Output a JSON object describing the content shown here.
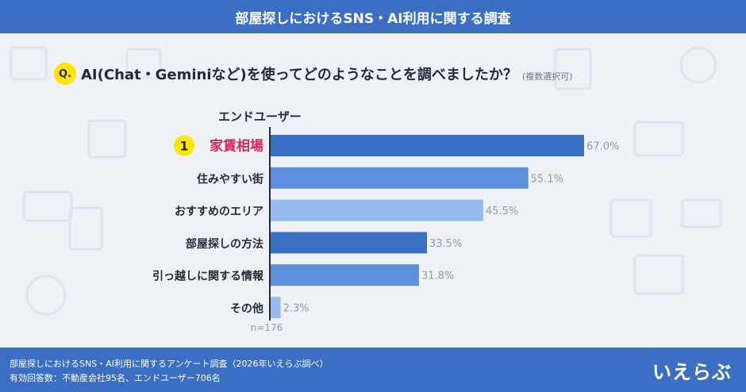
{
  "header": {
    "title": "部屋探しにおけるSNS・AI利用に関する調査"
  },
  "question": {
    "badge": "Q.",
    "text": "AI(Chat・Geminiなど)を使ってどのようなことを調べましたか？",
    "note": "(複数選択可)"
  },
  "segment_label": "エンドユーザー",
  "rank_badge": "1",
  "chart_data": {
    "type": "bar",
    "orientation": "horizontal",
    "categories": [
      "家賃相場",
      "住みやすい街",
      "おすすめのエリア",
      "部屋探しの方法",
      "引っ越しに関する情報",
      "その他"
    ],
    "values": [
      67.0,
      55.1,
      45.5,
      33.5,
      31.8,
      2.3
    ],
    "value_labels": [
      "67.0%",
      "55.1%",
      "45.5%",
      "33.5%",
      "31.8%",
      "2.3%"
    ],
    "highlight_index": 0,
    "sample": "n=176",
    "colors": {
      "bars": [
        "#3a6fc4",
        "#5b8fdb",
        "#98bcef",
        "#3a6fc4",
        "#5b8fdb",
        "#98bcef"
      ],
      "highlight_label": "#d1285f",
      "label": "#1f2a3a",
      "value_text": "#8f99a8"
    }
  },
  "footer": {
    "line1": "部屋探しにおけるSNS・AI利用に関するアンケート調査（2026年いえらぶ調べ）",
    "line2": "有効回答数：不動産会社95名、エンドユーザー706名",
    "logo": "いえらぶ"
  }
}
